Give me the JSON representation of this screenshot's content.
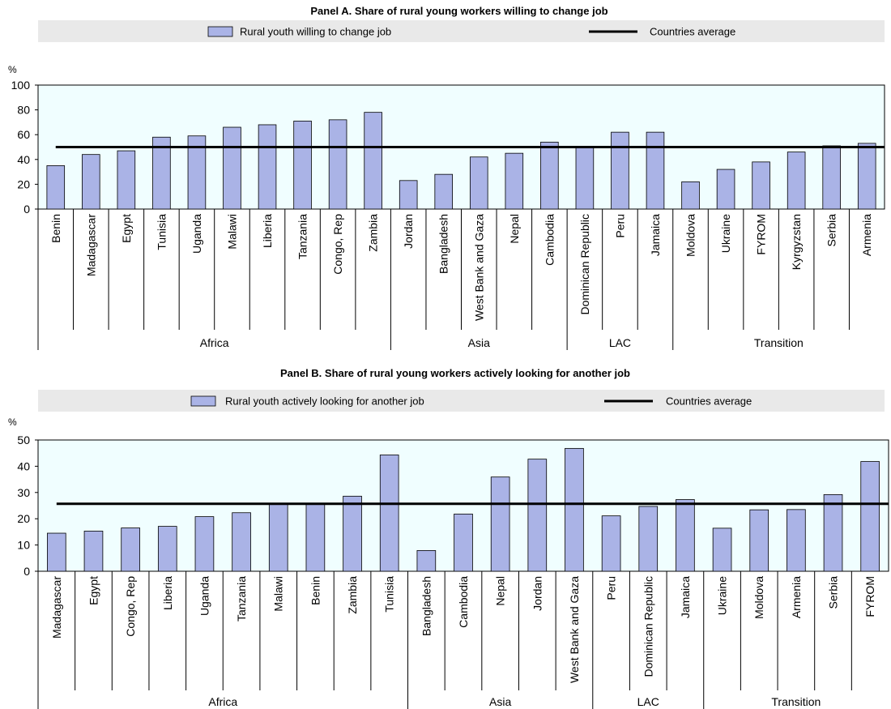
{
  "chart_data": [
    {
      "type": "bar",
      "title": "Panel A. Share of rural young workers willing to change job",
      "ylabel": "%",
      "ylim": [
        0,
        100
      ],
      "yticks": [
        0,
        20,
        40,
        60,
        80,
        100
      ],
      "legend_position": "top",
      "categories": [
        "Benin",
        "Madagascar",
        "Egypt",
        "Tunisia",
        "Uganda",
        "Malawi",
        "Liberia",
        "Tanzania",
        "Congo, Rep",
        "Zambia",
        "Jordan",
        "Bangladesh",
        "West Bank and Gaza",
        "Nepal",
        "Cambodia",
        "Dominican Republic",
        "Peru",
        "Jamaica",
        "Moldova",
        "Ukraine",
        "FYROM",
        "Kyrgyzstan",
        "Serbia",
        "Armenia"
      ],
      "groups": [
        {
          "name": "Africa",
          "count": 10
        },
        {
          "name": "Asia",
          "count": 5
        },
        {
          "name": "LAC",
          "count": 3
        },
        {
          "name": "Transition",
          "count": 6
        }
      ],
      "series": [
        {
          "name": "Rural youth willing to change job",
          "values": [
            35,
            44,
            47,
            58,
            59,
            66,
            68,
            71,
            72,
            78,
            23,
            28,
            42,
            45,
            54,
            50,
            62,
            62,
            22,
            32,
            38,
            46,
            51,
            53
          ]
        }
      ],
      "average": {
        "name": "Countries average",
        "value": 50
      }
    },
    {
      "type": "bar",
      "title": "Panel B. Share of rural young workers actively looking for another job",
      "ylabel": "%",
      "ylim": [
        0,
        50
      ],
      "yticks": [
        0,
        10,
        20,
        30,
        40,
        50
      ],
      "legend_position": "top",
      "categories": [
        "Madagascar",
        "Egypt",
        "Congo, Rep",
        "Liberia",
        "Uganda",
        "Tanzania",
        "Malawi",
        "Benin",
        "Zambia",
        "Tunisia",
        "Bangladesh",
        "Cambodia",
        "Nepal",
        "Jordan",
        "West Bank and Gaza",
        "Peru",
        "Dominican Republic",
        "Jamaica",
        "Ukraine",
        "Moldova",
        "Armenia",
        "Serbia",
        "FYROM"
      ],
      "groups": [
        {
          "name": "Africa",
          "count": 10
        },
        {
          "name": "Asia",
          "count": 5
        },
        {
          "name": "LAC",
          "count": 3
        },
        {
          "name": "Transition",
          "count": 5
        }
      ],
      "series": [
        {
          "name": "Rural youth actively looking for another job",
          "values": [
            14.5,
            15.3,
            16.5,
            17.1,
            20.8,
            22.3,
            25.8,
            25.9,
            28.6,
            44.3,
            7.9,
            21.8,
            35.9,
            42.7,
            46.8,
            21.1,
            24.7,
            27.3,
            16.4,
            23.4,
            23.5,
            29.2,
            41.8
          ]
        }
      ],
      "average": {
        "name": "Countries average",
        "value": 25.7
      }
    }
  ],
  "style": {
    "bar_fill": "#aab3e6",
    "bar_stroke": "#000000",
    "plot_background": "#f0feff",
    "legend_background": "#e9e9e9",
    "average_line": "#000000"
  }
}
